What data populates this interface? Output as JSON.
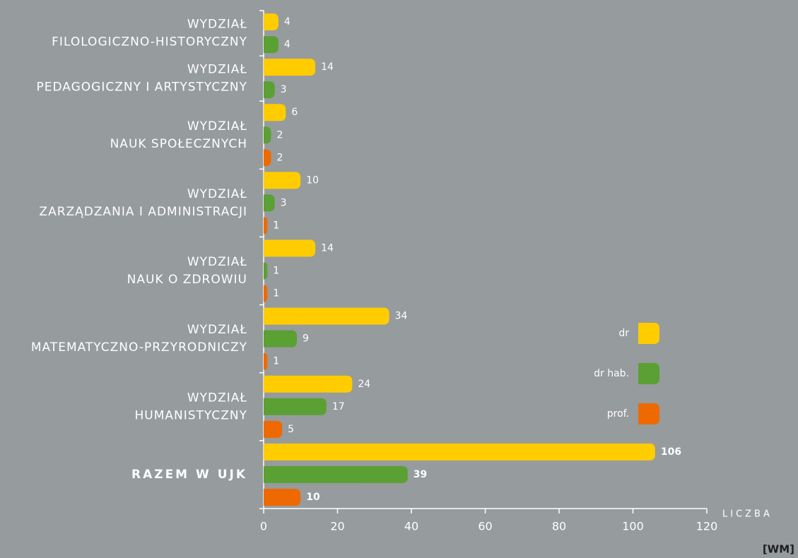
{
  "chart_data": {
    "type": "bar",
    "orientation": "horizontal",
    "categories": [
      [
        "WYDZIAŁ",
        "FILOLOGICZNO-HISTORYCZNY"
      ],
      [
        "WYDZIAŁ",
        "PEDAGOGICZNY I ARTYSTYCZNY"
      ],
      [
        "WYDZIAŁ",
        "NAUK SPOŁECZNYCH"
      ],
      [
        "WYDZIAŁ",
        "ZARZĄDZANIA I ADMINISTRACJI"
      ],
      [
        "WYDZIAŁ",
        "NAUK O ZDROWIU"
      ],
      [
        "WYDZIAŁ",
        "MATEMATYCZNO-PRZYRODNICZY"
      ],
      [
        "WYDZIAŁ",
        "HUMANISTYCZNY"
      ],
      [
        "RAZEM W UJK"
      ]
    ],
    "series": [
      {
        "name": "dr",
        "color": "#ffcc00",
        "values": [
          4,
          14,
          6,
          10,
          14,
          34,
          24,
          106
        ]
      },
      {
        "name": "dr hab.",
        "color": "#5ba033",
        "values": [
          4,
          3,
          2,
          3,
          1,
          9,
          17,
          39
        ]
      },
      {
        "name": "prof.",
        "color": "#ee6a00",
        "values": [
          null,
          null,
          2,
          1,
          1,
          1,
          5,
          10
        ]
      }
    ],
    "xlabel": "LICZBA",
    "xlim": [
      0,
      120
    ],
    "xticks": [
      0,
      20,
      40,
      60,
      80,
      100,
      120
    ],
    "footer": "[WM]"
  }
}
